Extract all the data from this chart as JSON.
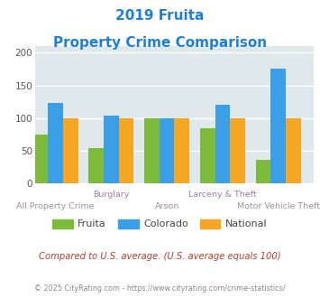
{
  "title_line1": "2019 Fruita",
  "title_line2": "Property Crime Comparison",
  "title_color": "#1E7FD8",
  "categories": [
    "All Property Crime",
    "Burglary",
    "Arson",
    "Larceny & Theft",
    "Motor Vehicle Theft"
  ],
  "fruita": [
    75,
    54,
    100,
    85,
    36
  ],
  "colorado": [
    123,
    104,
    100,
    120,
    175
  ],
  "national": [
    100,
    100,
    100,
    100,
    100
  ],
  "fruita_color": "#7CBB3C",
  "colorado_color": "#3B9FE8",
  "national_color": "#F5A623",
  "ylim": [
    0,
    210
  ],
  "yticks": [
    0,
    50,
    100,
    150,
    200
  ],
  "plot_bg": "#DFE9EC",
  "footer_text": "Compared to U.S. average. (U.S. average equals 100)",
  "footer_color": "#C0392B",
  "credit_text": "© 2025 CityRating.com - https://www.cityrating.com/crime-statistics/",
  "credit_color": "#888888",
  "legend_labels": [
    "Fruita",
    "Colorado",
    "National"
  ],
  "xlabel_color_top": "#9B7BB0",
  "xlabel_color_bottom": "#A09090",
  "grid_color": "#FFFFFF",
  "x_top_labels": [
    "",
    "Burglary",
    "",
    "Larceny & Theft",
    ""
  ],
  "x_bottom_labels": [
    "All Property Crime",
    "",
    "Arson",
    "",
    "Motor Vehicle Theft"
  ]
}
